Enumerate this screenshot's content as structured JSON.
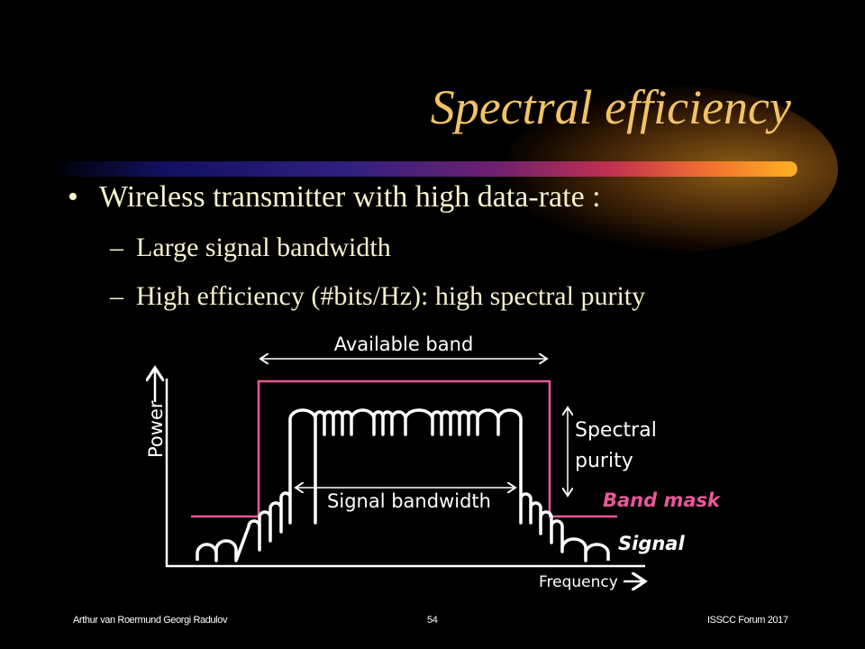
{
  "slide": {
    "title": "Spectral efficiency",
    "bullets": [
      {
        "text": "Wireless transmitter with high data-rate :",
        "sub": [
          "Large signal bandwidth",
          "High efficiency (#bits/Hz): high spectral purity"
        ]
      }
    ],
    "bullet_glyph": "•",
    "dash_glyph": "–"
  },
  "diagram": {
    "y_axis_label": "Power",
    "x_axis_label": "Frequency",
    "available_band_label": "Available band",
    "signal_bandwidth_label": "Signal bandwidth",
    "spectral_purity_label_1": "Spectral",
    "spectral_purity_label_2": "purity",
    "band_mask_label": "Band mask",
    "signal_label": "Signal",
    "colors": {
      "band_mask": "#e8579a",
      "signal": "#ffffff"
    }
  },
  "footer": {
    "authors": "Arthur van Roermund Georgi Radulov",
    "page": "54",
    "event": "ISSCC  Forum 2017"
  }
}
